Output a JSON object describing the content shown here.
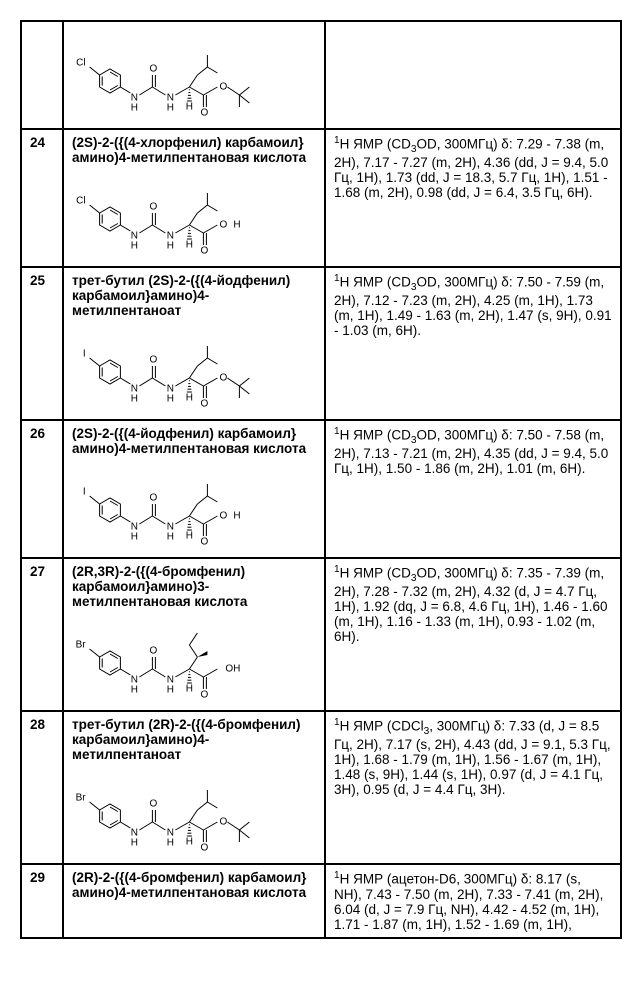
{
  "rows": [
    {
      "num": "",
      "name": "",
      "nmr_html": "",
      "struct": "cl-otbu"
    },
    {
      "num": "24",
      "name": "(2S)-2-({(4-хлорфенил) карбамоил}амино)4-метилпентановая кислота",
      "nmr_html": "<sup>1</sup>H ЯМР (CD<sub>3</sub>OD, 300МГц)  δ: 7.29 - 7.38 (m, 2H), 7.17 - 7.27 (m, 2H), 4.36 (dd, J = 9.4, 5.0 Гц, 1H), 1.73 (dd, J = 18.3, 5.7 Гц, 1H), 1.51 - 1.68 (m, 2H), 0.98 (dd, J = 6.4, 3.5 Гц, 6H).",
      "struct": "cl-oh"
    },
    {
      "num": "25",
      "name": "трет-бутил (2S)-2-({(4-йодфенил) карбамоил}амино)4-метилпентаноат",
      "nmr_html": "<sup>1</sup>H ЯМР (CD<sub>3</sub>OD, 300МГц)  δ: 7.50 - 7.59 (m, 2H), 7.12 - 7.23 (m, 2H), 4.25 (m, 1H), 1.73 (m, 1H), 1.49 - 1.63 (m, 2H), 1.47 (s, 9H), 0.91 - 1.03 (m, 6H).",
      "struct": "i-otbu"
    },
    {
      "num": "26",
      "name": "(2S)-2-({(4-йодфенил) карбамоил}амино)4-метилпентановая кислота",
      "nmr_html": "<sup>1</sup>H ЯМР (CD<sub>3</sub>OD, 300МГц)  δ: 7.50 - 7.58 (m, 2H), 7.13 - 7.21 (m, 2H), 4.35 (dd, J = 9.4, 5.0 Гц, 1H), 1.50 - 1.86 (m, 2H), 1.01 (m, 6H).",
      "struct": "i-oh"
    },
    {
      "num": "27",
      "name": "(2R,3R)-2-({(4-бромфенил) карбамоил}амино)3-метилпентановая кислота",
      "nmr_html": "<sup>1</sup>H ЯМР (CD<sub>3</sub>OD, 300МГц)  δ: 7.35 - 7.39 (m, 2H), 7.28 - 7.32 (m, 2H), 4.32 (d, J = 4.7 Гц, 1H), 1.92 (dq, J = 6.8, 4.6 Гц, 1H), 1.46 - 1.60 (m, 1H), 1.16 - 1.33 (m, 1H), 0.93 - 1.02 (m, 6H).",
      "struct": "br-ile-oh"
    },
    {
      "num": "28",
      "name": "трет-бутил (2R)-2-({(4-бромфенил) карбамоил}амино)4-метилпентаноат",
      "nmr_html": "<sup>1</sup>H ЯМР (CDCl<sub>3</sub>, 300МГц)  δ: 7.33 (d, J = 8.5 Гц, 2H), 7.17 (s, 2H), 4.43 (dd, J = 9.1, 5.3 Гц, 1H), 1.68 - 1.79 (m, 1H), 1.56 - 1.67 (m, 1H), 1.48 (s, 9H), 1.44 (s, 1H), 0.97 (d, J = 4.1 Гц, 3H), 0.95 (d, J = 4.4 Гц, 3H).",
      "struct": "br-otbu"
    },
    {
      "num": "29",
      "name": "(2R)-2-({(4-бромфенил) карбамоил}амино)4-метилпентановая кислота",
      "nmr_html": "<sup>1</sup>H ЯМР (ацетон-D6, 300МГц)  δ: 8.17 (s, NH), 7.43 - 7.50 (m, 2H), 7.33 - 7.41 (m, 2H), 6.04 (d, J = 7.9 Гц, NH), 4.42 - 4.52 (m, 1H), 1.71 - 1.87 (m, 1H), 1.52 - 1.69 (m, 1H),",
      "struct": ""
    }
  ],
  "svg": {
    "stroke": "#000",
    "bg": "#fff"
  },
  "labels": {
    "Cl": "Cl",
    "I": "I",
    "Br": "Br",
    "O": "O",
    "OH": "OH",
    "N": "N",
    "H": "H"
  }
}
